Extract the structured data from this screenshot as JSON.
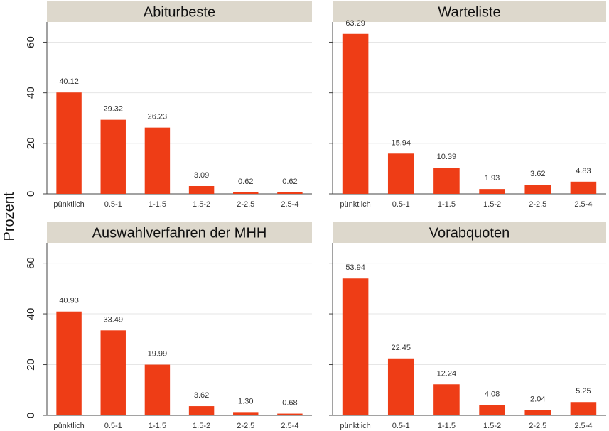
{
  "chart_data": {
    "type": "bar",
    "ylabel": "Prozent",
    "ylim": [
      0,
      68
    ],
    "yticks": [
      0,
      20,
      40,
      60
    ],
    "grid": true,
    "bar_color": "#ee3d16",
    "strip_color": "#ddd8cc",
    "categories": [
      "pünktlich",
      "0.5-1",
      "1-1.5",
      "1.5-2",
      "2-2.5",
      "2.5-4"
    ],
    "panels": [
      {
        "title": "Abiturbeste",
        "values": [
          40.12,
          29.32,
          26.23,
          3.09,
          0.62,
          0.62
        ],
        "labels": [
          "40.12",
          "29.32",
          "26.23",
          "3.09",
          "0.62",
          "0.62"
        ]
      },
      {
        "title": "Warteliste",
        "values": [
          63.29,
          15.94,
          10.39,
          1.93,
          3.62,
          4.83
        ],
        "labels": [
          "63.29",
          "15.94",
          "10.39",
          "1.93",
          "3.62",
          "4.83"
        ]
      },
      {
        "title": "Auswahlverfahren der MHH",
        "values": [
          40.93,
          33.49,
          19.99,
          3.62,
          1.3,
          0.68
        ],
        "labels": [
          "40.93",
          "33.49",
          "19.99",
          "3.62",
          "1.30",
          "0.68"
        ]
      },
      {
        "title": "Vorabquoten",
        "values": [
          53.94,
          22.45,
          12.24,
          4.08,
          2.04,
          5.25
        ],
        "labels": [
          "53.94",
          "22.45",
          "12.24",
          "4.08",
          "2.04",
          "5.25"
        ]
      }
    ]
  }
}
